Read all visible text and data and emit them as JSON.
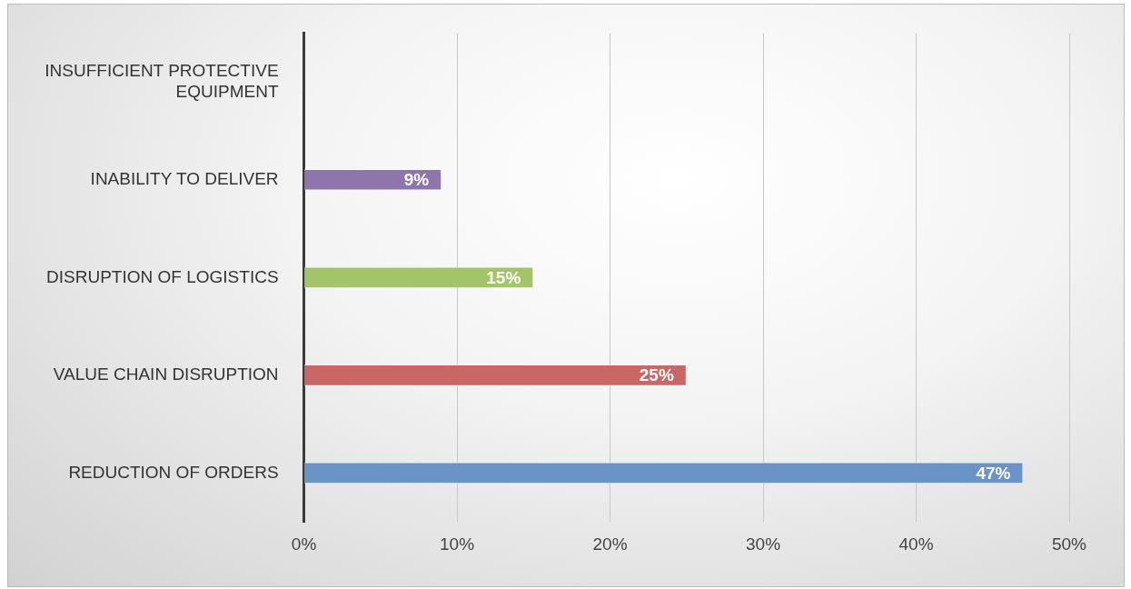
{
  "chart_data": {
    "type": "bar",
    "orientation": "horizontal",
    "categories": [
      "INSUFFICIENT PROTECTIVE EQUIPMENT",
      "INABILITY TO DELIVER",
      "DISRUPTION OF LOGISTICS",
      "VALUE CHAIN DISRUPTION",
      "REDUCTION OF ORDERS"
    ],
    "values": [
      null,
      9,
      15,
      25,
      47
    ],
    "value_labels": [
      null,
      "9%",
      "15%",
      "25%",
      "47%"
    ],
    "colors": [
      null,
      "#8e76ad",
      "#a4c46a",
      "#c86765",
      "#6a94c8"
    ],
    "xlim": [
      0,
      50
    ],
    "xticks": [
      {
        "value": 0,
        "label": "0%"
      },
      {
        "value": 10,
        "label": "10%"
      },
      {
        "value": 20,
        "label": "20%"
      },
      {
        "value": 30,
        "label": "30%"
      },
      {
        "value": 40,
        "label": "40%"
      },
      {
        "value": 50,
        "label": "50%"
      }
    ],
    "grid": "x",
    "legend": false
  }
}
